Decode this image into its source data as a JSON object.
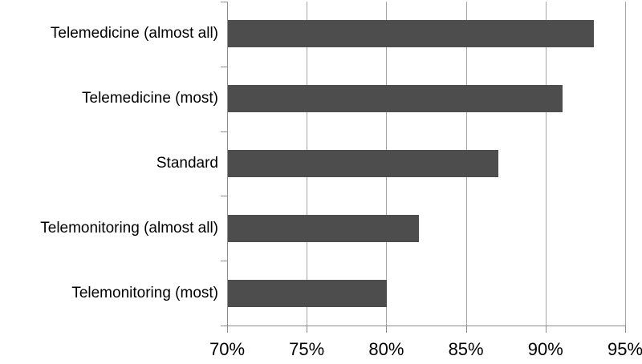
{
  "chart_data": {
    "type": "bar",
    "orientation": "horizontal",
    "title": "",
    "xlabel": "",
    "ylabel": "",
    "categories": [
      "Telemedicine (almost all)",
      "Telemedicine (most)",
      "Standard",
      "Telemonitoring (almost all)",
      "Telemonitoring (most)"
    ],
    "values": [
      93,
      91,
      87,
      82,
      80
    ],
    "value_unit": "%",
    "xlim": [
      70,
      95
    ],
    "x_tick_step": 5,
    "x_tick_labels": [
      "70%",
      "75%",
      "80%",
      "85%",
      "90%",
      "95%"
    ],
    "grid": "vertical-on",
    "legend": "none",
    "colors": {
      "bar_fill": "#4d4d4d",
      "gridline": "#a6a6a6",
      "axis_line": "#8c8c8c",
      "tick_mark": "#8c8c8c",
      "text": "#000000",
      "background": "#ffffff"
    }
  }
}
